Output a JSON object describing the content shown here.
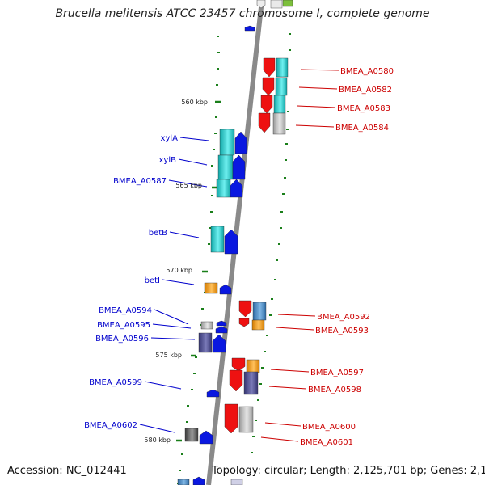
{
  "title": "Brucella melitensis ATCC 23457 chromosome I, complete genome",
  "accession": "Accession: NC_012441",
  "topology": "Topology: circular; Length: 2,125,701 bp; Genes: 2,111",
  "colors": {
    "left_label": "#0000cc",
    "right_label": "#cc0000",
    "backbone": "#8a8a8a",
    "tick": "#1a7f1a",
    "red": "#ee1111",
    "blue": "#0a18e0",
    "cyan": "#19c9c9",
    "gray": "#bdbdbd",
    "orange": "#f39a12",
    "navy": "#4b4b8e",
    "steel": "#4d8ec4",
    "dark": "#555555"
  },
  "scale_labels": [
    "560 kbp",
    "565 kbp",
    "570 kbp",
    "575 kbp",
    "580 kbp"
  ],
  "left_genes": [
    "xylA",
    "xylB",
    "BMEA_A0587",
    "betB",
    "betI",
    "BMEA_A0594",
    "BMEA_A0595",
    "BMEA_A0596",
    "BMEA_A0599",
    "BMEA_A0602"
  ],
  "right_genes": [
    "BMEA_A0580",
    "BMEA_A0582",
    "BMEA_A0583",
    "BMEA_A0584",
    "BMEA_A0592",
    "BMEA_A0593",
    "BMEA_A0597",
    "BMEA_A0598",
    "BMEA_A0600",
    "BMEA_A0601"
  ]
}
